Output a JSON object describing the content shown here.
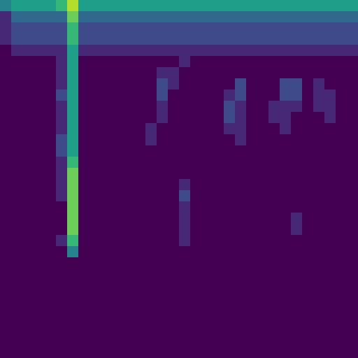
{
  "chart_data": {
    "type": "heatmap",
    "color": "Viridis",
    "tick_labels": false,
    "zlim": [
      0,
      9
    ],
    "z": [
      [
        4,
        5,
        5,
        5,
        5,
        6,
        8,
        5,
        5,
        5,
        5,
        5,
        5,
        5,
        5,
        5,
        5,
        5,
        5,
        5,
        5,
        5,
        5,
        5,
        5,
        5,
        5,
        5,
        5,
        5,
        5,
        5
      ],
      [
        1,
        3,
        3,
        3,
        3,
        3,
        7,
        3,
        3,
        3,
        3,
        3,
        3,
        3,
        3,
        3,
        3,
        3,
        3,
        3,
        3,
        3,
        3,
        3,
        3,
        3,
        3,
        3,
        3,
        3,
        3,
        3
      ],
      [
        1,
        2,
        2,
        2,
        2,
        2,
        6,
        2,
        2,
        2,
        2,
        2,
        2,
        2,
        2,
        2,
        2,
        2,
        2,
        2,
        2,
        2,
        2,
        2,
        2,
        2,
        2,
        2,
        2,
        2,
        2,
        2
      ],
      [
        1,
        2,
        2,
        2,
        2,
        2,
        6,
        2,
        2,
        2,
        2,
        2,
        2,
        2,
        2,
        2,
        2,
        2,
        2,
        2,
        2,
        2,
        2,
        2,
        2,
        2,
        2,
        2,
        2,
        2,
        2,
        2
      ],
      [
        0,
        1,
        1,
        1,
        1,
        1,
        5,
        1,
        1,
        1,
        1,
        1,
        1,
        1,
        1,
        1,
        1,
        1,
        1,
        1,
        1,
        1,
        1,
        1,
        1,
        1,
        1,
        1,
        1,
        1,
        1,
        1
      ],
      [
        0,
        0,
        0,
        0,
        0,
        1,
        5,
        0,
        0,
        0,
        0,
        0,
        0,
        0,
        0,
        0,
        1,
        0,
        0,
        0,
        0,
        0,
        0,
        0,
        0,
        0,
        0,
        0,
        0,
        0,
        0,
        0
      ],
      [
        0,
        0,
        0,
        0,
        0,
        1,
        5,
        0,
        0,
        0,
        0,
        0,
        0,
        0,
        1,
        1,
        0,
        0,
        0,
        0,
        0,
        0,
        0,
        0,
        0,
        0,
        0,
        0,
        0,
        0,
        0,
        0
      ],
      [
        0,
        0,
        0,
        0,
        0,
        1,
        5,
        0,
        0,
        0,
        0,
        0,
        0,
        0,
        2,
        1,
        0,
        0,
        0,
        0,
        0,
        2,
        0,
        0,
        0,
        2,
        2,
        0,
        1,
        0,
        0,
        0
      ],
      [
        0,
        0,
        0,
        0,
        0,
        2,
        5,
        0,
        0,
        0,
        0,
        0,
        0,
        0,
        2,
        0,
        0,
        0,
        0,
        0,
        1,
        2,
        0,
        0,
        0,
        2,
        2,
        0,
        1,
        1,
        0,
        0
      ],
      [
        0,
        0,
        0,
        0,
        0,
        1,
        5,
        0,
        0,
        0,
        0,
        0,
        0,
        0,
        1,
        0,
        0,
        0,
        0,
        0,
        2,
        1,
        0,
        0,
        1,
        1,
        1,
        0,
        1,
        1,
        0,
        0
      ],
      [
        0,
        0,
        0,
        0,
        0,
        1,
        5,
        0,
        0,
        0,
        0,
        0,
        0,
        0,
        1,
        0,
        0,
        0,
        0,
        0,
        2,
        1,
        0,
        0,
        1,
        1,
        0,
        0,
        0,
        1,
        0,
        0
      ],
      [
        0,
        0,
        0,
        0,
        0,
        1,
        5,
        0,
        0,
        0,
        0,
        0,
        0,
        1,
        0,
        0,
        0,
        0,
        0,
        0,
        1,
        1,
        0,
        0,
        0,
        1,
        0,
        0,
        0,
        0,
        0,
        0
      ],
      [
        0,
        0,
        0,
        0,
        0,
        2,
        5,
        0,
        0,
        0,
        0,
        0,
        0,
        1,
        0,
        0,
        0,
        0,
        0,
        0,
        0,
        1,
        0,
        0,
        0,
        0,
        0,
        0,
        0,
        0,
        0,
        0
      ],
      [
        0,
        0,
        0,
        0,
        0,
        2,
        5,
        0,
        0,
        0,
        0,
        0,
        0,
        0,
        0,
        0,
        0,
        0,
        0,
        0,
        0,
        0,
        0,
        0,
        0,
        0,
        0,
        0,
        0,
        0,
        0,
        0
      ],
      [
        0,
        0,
        0,
        0,
        0,
        1,
        6,
        0,
        0,
        0,
        0,
        0,
        0,
        0,
        0,
        0,
        0,
        0,
        0,
        0,
        0,
        0,
        0,
        0,
        0,
        0,
        0,
        0,
        0,
        0,
        0,
        0
      ],
      [
        0,
        0,
        0,
        0,
        0,
        1,
        7,
        0,
        0,
        0,
        0,
        0,
        0,
        0,
        0,
        0,
        0,
        0,
        0,
        0,
        0,
        0,
        0,
        0,
        0,
        0,
        0,
        0,
        0,
        0,
        0,
        0
      ],
      [
        0,
        0,
        0,
        0,
        0,
        1,
        7,
        0,
        0,
        0,
        0,
        0,
        0,
        0,
        0,
        0,
        1,
        0,
        0,
        0,
        0,
        0,
        0,
        0,
        0,
        0,
        0,
        0,
        0,
        0,
        0,
        0
      ],
      [
        0,
        0,
        0,
        0,
        0,
        1,
        7,
        0,
        0,
        0,
        0,
        0,
        0,
        0,
        0,
        0,
        2,
        0,
        0,
        0,
        0,
        0,
        0,
        0,
        0,
        0,
        0,
        0,
        0,
        0,
        0,
        0
      ],
      [
        0,
        0,
        0,
        0,
        0,
        0,
        7,
        0,
        0,
        0,
        0,
        0,
        0,
        0,
        0,
        0,
        1,
        0,
        0,
        0,
        0,
        0,
        0,
        0,
        0,
        0,
        0,
        0,
        0,
        0,
        0,
        0
      ],
      [
        0,
        0,
        0,
        0,
        0,
        0,
        7,
        0,
        0,
        0,
        0,
        0,
        0,
        0,
        0,
        0,
        1,
        0,
        0,
        0,
        0,
        0,
        0,
        0,
        0,
        0,
        1,
        0,
        0,
        0,
        0,
        0
      ],
      [
        0,
        0,
        0,
        0,
        0,
        0,
        7,
        0,
        0,
        0,
        0,
        0,
        0,
        0,
        0,
        0,
        1,
        0,
        0,
        0,
        0,
        0,
        0,
        0,
        0,
        0,
        1,
        0,
        0,
        0,
        0,
        0
      ],
      [
        0,
        0,
        0,
        0,
        0,
        1,
        6,
        0,
        0,
        0,
        0,
        0,
        0,
        0,
        0,
        0,
        1,
        0,
        0,
        0,
        0,
        0,
        0,
        0,
        0,
        0,
        0,
        0,
        0,
        0,
        0,
        0
      ],
      [
        0,
        0,
        0,
        0,
        0,
        0,
        4,
        0,
        0,
        0,
        0,
        0,
        0,
        0,
        0,
        0,
        0,
        0,
        0,
        0,
        0,
        0,
        0,
        0,
        0,
        0,
        0,
        0,
        0,
        0,
        0,
        0
      ],
      [
        0,
        0,
        0,
        0,
        0,
        0,
        0,
        0,
        0,
        0,
        0,
        0,
        0,
        0,
        0,
        0,
        0,
        0,
        0,
        0,
        0,
        0,
        0,
        0,
        0,
        0,
        0,
        0,
        0,
        0,
        0,
        0
      ],
      [
        0,
        0,
        0,
        0,
        0,
        0,
        0,
        0,
        0,
        0,
        0,
        0,
        0,
        0,
        0,
        0,
        0,
        0,
        0,
        0,
        0,
        0,
        0,
        0,
        0,
        0,
        0,
        0,
        0,
        0,
        0,
        0
      ],
      [
        0,
        0,
        0,
        0,
        0,
        0,
        0,
        0,
        0,
        0,
        0,
        0,
        0,
        0,
        0,
        0,
        0,
        0,
        0,
        0,
        0,
        0,
        0,
        0,
        0,
        0,
        0,
        0,
        0,
        0,
        0,
        0
      ],
      [
        0,
        0,
        0,
        0,
        0,
        0,
        0,
        0,
        0,
        0,
        0,
        0,
        0,
        0,
        0,
        0,
        0,
        0,
        0,
        0,
        0,
        0,
        0,
        0,
        0,
        0,
        0,
        0,
        0,
        0,
        0,
        0
      ],
      [
        0,
        0,
        0,
        0,
        0,
        0,
        0,
        0,
        0,
        0,
        0,
        0,
        0,
        0,
        0,
        0,
        0,
        0,
        0,
        0,
        0,
        0,
        0,
        0,
        0,
        0,
        0,
        0,
        0,
        0,
        0,
        0
      ],
      [
        0,
        0,
        0,
        0,
        0,
        0,
        0,
        0,
        0,
        0,
        0,
        0,
        0,
        0,
        0,
        0,
        0,
        0,
        0,
        0,
        0,
        0,
        0,
        0,
        0,
        0,
        0,
        0,
        0,
        0,
        0,
        0
      ],
      [
        0,
        0,
        0,
        0,
        0,
        0,
        0,
        0,
        0,
        0,
        0,
        0,
        0,
        0,
        0,
        0,
        0,
        0,
        0,
        0,
        0,
        0,
        0,
        0,
        0,
        0,
        0,
        0,
        0,
        0,
        0,
        0
      ],
      [
        0,
        0,
        0,
        0,
        0,
        0,
        0,
        0,
        0,
        0,
        0,
        0,
        0,
        0,
        0,
        0,
        0,
        0,
        0,
        0,
        0,
        0,
        0,
        0,
        0,
        0,
        0,
        0,
        0,
        0,
        0,
        0
      ],
      [
        0,
        0,
        0,
        0,
        0,
        0,
        0,
        0,
        0,
        0,
        0,
        0,
        0,
        0,
        0,
        0,
        0,
        0,
        0,
        0,
        0,
        0,
        0,
        0,
        0,
        0,
        0,
        0,
        0,
        0,
        0,
        0
      ]
    ]
  }
}
